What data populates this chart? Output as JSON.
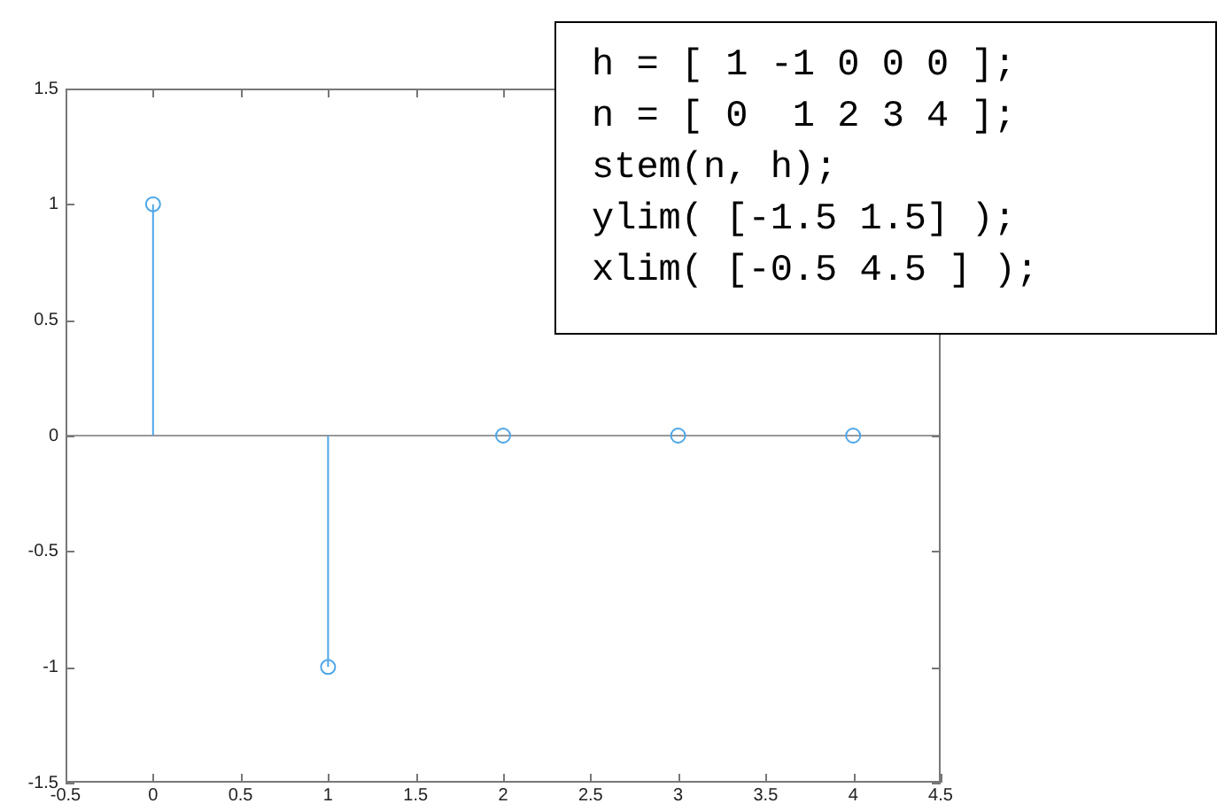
{
  "chart_data": {
    "type": "lollipop",
    "x": [
      0,
      1,
      2,
      3,
      4
    ],
    "values": [
      1,
      -1,
      0,
      0,
      0
    ],
    "color": "#4da6e8",
    "marker": "circle",
    "xlim": [
      -0.5,
      4.5
    ],
    "xticks": [
      -0.5,
      0,
      0.5,
      1,
      1.5,
      2,
      2.5,
      3,
      3.5,
      4,
      4.5
    ],
    "ylim": [
      -1.5,
      1.5
    ],
    "yticks": [
      -1.5,
      -1,
      -0.5,
      0,
      0.5,
      1,
      1.5
    ],
    "grid": false,
    "legend": false,
    "ref_lines": [
      {
        "axis": "y",
        "value": 0,
        "color": "#999999"
      }
    ],
    "annotations": [
      "h = [ 1 -1 0 0 0 ];",
      "n = [ 0  1 2 3 4 ];",
      "stem(n, h);",
      "ylim( [-1.5 1.5] );",
      "xlim( [-0.5 4.5 ] );"
    ]
  }
}
